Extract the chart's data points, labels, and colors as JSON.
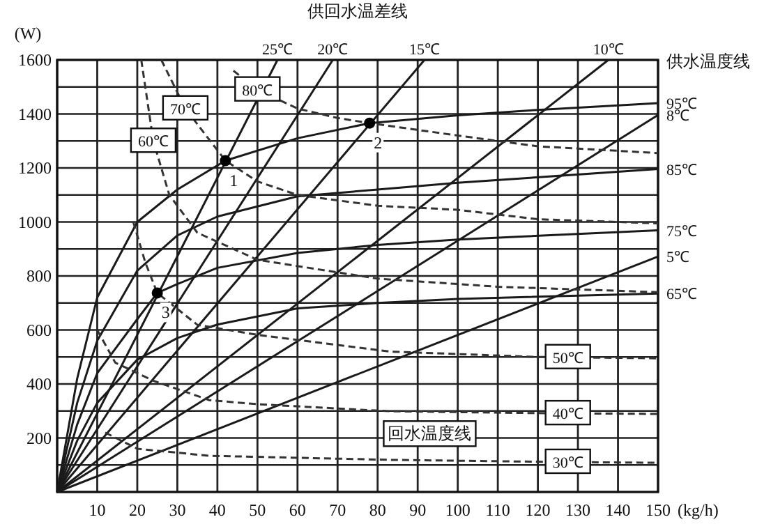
{
  "chart_data": {
    "type": "line",
    "title": "供回水温差线",
    "legend_title": "供水温度线",
    "ylabel": "(W)",
    "xlabel": "(kg/h)",
    "xlim": [
      0,
      150
    ],
    "ylim": [
      0,
      1600
    ],
    "xticks": [
      {
        "value": 0,
        "label": null
      },
      10,
      20,
      30,
      40,
      50,
      60,
      70,
      80,
      90,
      100,
      110,
      120,
      130,
      140,
      150
    ],
    "yticks": [
      {
        "value": 0,
        "label": null
      },
      {
        "value": 100,
        "label": null
      },
      200,
      {
        "value": 300,
        "label": null
      },
      400,
      {
        "value": 500,
        "label": null
      },
      600,
      {
        "value": 700,
        "label": null
      },
      800,
      {
        "value": 900,
        "label": null
      },
      1000,
      {
        "value": 1100,
        "label": null
      },
      1200,
      {
        "value": 1300,
        "label": null
      },
      1400,
      {
        "value": 1500,
        "label": null
      },
      1600
    ],
    "grid": true,
    "annotations": [
      "回水温度线",
      {
        "text": "1",
        "x": 42,
        "y": 1227
      },
      {
        "text": "2",
        "x": 78,
        "y": 1366
      },
      {
        "text": "3",
        "x": 25,
        "y": 737
      }
    ],
    "series": [
      {
        "name": "95℃",
        "color": "#1a1a1a",
        "line_style": "solid",
        "x": [
          0,
          5,
          10,
          20,
          30,
          42,
          60,
          78,
          100,
          120,
          150
        ],
        "values": [
          0,
          420,
          720,
          1000,
          1120,
          1227,
          1310,
          1366,
          1395,
          1415,
          1440
        ]
      },
      {
        "name": "85℃",
        "color": "#1a1a1a",
        "line_style": "solid",
        "x": [
          0,
          5,
          10,
          20,
          30,
          40,
          60,
          80,
          100,
          150
        ],
        "values": [
          0,
          330,
          560,
          820,
          950,
          1020,
          1095,
          1120,
          1145,
          1196
        ]
      },
      {
        "name": "75℃",
        "color": "#1a1a1a",
        "line_style": "solid",
        "x": [
          0,
          5,
          10,
          20,
          25,
          30,
          40,
          60,
          80,
          100,
          150
        ],
        "values": [
          0,
          250,
          440,
          640,
          737,
          770,
          830,
          885,
          915,
          935,
          969
        ]
      },
      {
        "name": "65℃",
        "color": "#1a1a1a",
        "line_style": "solid",
        "x": [
          0,
          5,
          10,
          20,
          30,
          40,
          60,
          80,
          100,
          150
        ],
        "values": [
          0,
          190,
          330,
          490,
          570,
          620,
          680,
          700,
          715,
          735
        ]
      },
      {
        "name": "25℃",
        "color": "#1a1a1a",
        "line_style": "solid",
        "x": [
          0,
          55
        ],
        "values": [
          0,
          1600
        ]
      },
      {
        "name": "20℃",
        "color": "#1a1a1a",
        "line_style": "solid",
        "x": [
          0,
          68.8
        ],
        "values": [
          0,
          1600
        ]
      },
      {
        "name": "15℃",
        "color": "#1a1a1a",
        "line_style": "solid",
        "x": [
          0,
          91.7
        ],
        "values": [
          0,
          1600
        ]
      },
      {
        "name": "10℃",
        "color": "#1a1a1a",
        "line_style": "solid",
        "x": [
          0,
          137.6
        ],
        "values": [
          0,
          1600
        ]
      },
      {
        "name": "8℃",
        "color": "#1a1a1a",
        "line_style": "solid",
        "x": [
          0,
          150
        ],
        "values": [
          0,
          1396
        ]
      },
      {
        "name": "5℃",
        "color": "#1a1a1a",
        "line_style": "solid",
        "x": [
          0,
          150
        ],
        "values": [
          0,
          872
        ]
      },
      {
        "name": "80℃",
        "color": "#333333",
        "line_style": "dashed",
        "x": [
          44,
          50,
          60,
          70,
          78,
          100,
          120,
          150
        ],
        "values": [
          1560,
          1490,
          1420,
          1385,
          1366,
          1320,
          1280,
          1255
        ]
      },
      {
        "name": "70℃",
        "color": "#333333",
        "line_style": "dashed",
        "x": [
          26,
          32,
          42,
          50,
          60,
          80,
          100,
          120,
          150
        ],
        "values": [
          1600,
          1420,
          1227,
          1150,
          1100,
          1060,
          1045,
          1010,
          995
        ]
      },
      {
        "name": "60℃",
        "color": "#333333",
        "line_style": "dashed",
        "x": [
          21,
          24,
          28,
          35,
          50,
          80,
          110,
          150
        ],
        "values": [
          1600,
          1300,
          1100,
          960,
          860,
          790,
          760,
          740
        ]
      },
      {
        "name": "50℃",
        "color": "#333333",
        "line_style": "dashed",
        "x": [
          19,
          22,
          25,
          35,
          50,
          83,
          120,
          150
        ],
        "values": [
          1000,
          850,
          737,
          619,
          582,
          520,
          500,
          495
        ]
      },
      {
        "name": "40℃",
        "color": "#333333",
        "line_style": "dashed",
        "x": [
          10,
          14.5,
          24,
          38,
          50,
          83,
          120,
          150
        ],
        "values": [
          600,
          479,
          412,
          340,
          325,
          299,
          292,
          289
        ]
      },
      {
        "name": "30℃",
        "color": "#333333",
        "line_style": "dashed",
        "x": [
          12,
          20,
          38,
          83,
          120,
          150
        ],
        "values": [
          220,
          160,
          134,
          119,
          112,
          108
        ]
      },
      {
        "type": "scatter",
        "color": "#000000",
        "marker": "circle",
        "x": [
          42,
          78,
          25
        ],
        "values": [
          1227,
          1366,
          737
        ]
      }
    ]
  }
}
